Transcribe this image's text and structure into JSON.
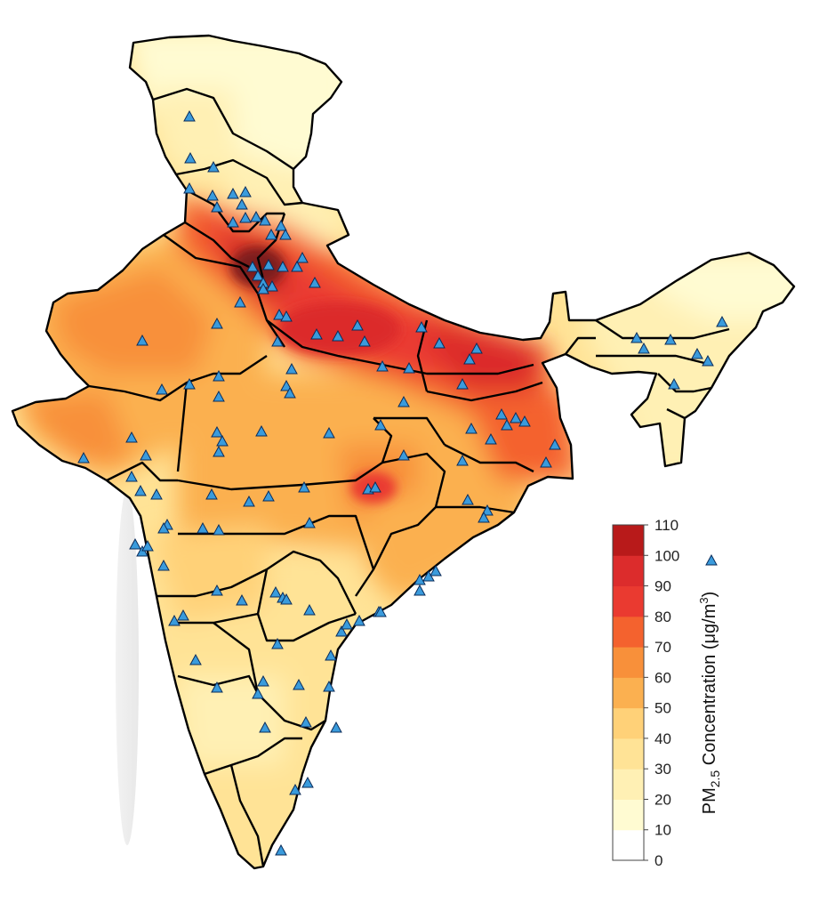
{
  "colorbar": {
    "title_main": "PM",
    "title_sub": "2.5",
    "title_rest": " Concentration (μg/m",
    "title_sup": "3",
    "title_end": ")",
    "ticks": [
      "0",
      "10",
      "20",
      "30",
      "40",
      "50",
      "60",
      "70",
      "80",
      "90",
      "100",
      "110"
    ],
    "colors": [
      "#ffffff",
      "#fffbd2",
      "#fff0b4",
      "#ffe396",
      "#ffd178",
      "#fbb050",
      "#f8903a",
      "#f4622e",
      "#ea3a30",
      "#dc2c2c",
      "#b81a1a",
      "#7d1a1a"
    ]
  },
  "map": {
    "boundary_color": "#000000",
    "station_marker": "triangle",
    "station_color": "#3a9bdc",
    "station_outline": "#0b2c5a"
  }
}
